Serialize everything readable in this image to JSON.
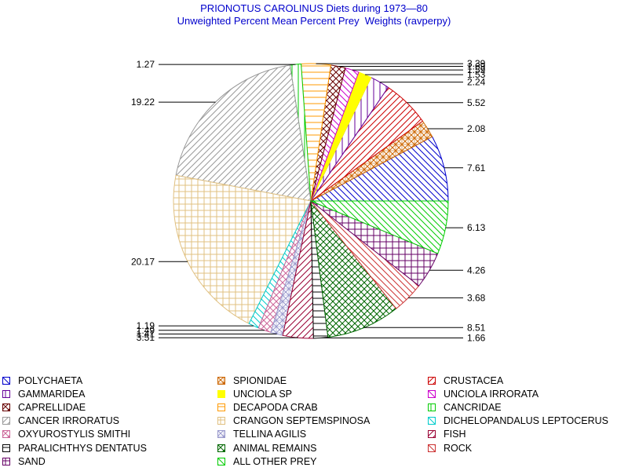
{
  "title": "PRIONOTUS CAROLINUS Diets during 1973—80",
  "subtitle": "Unweighted Percent Mean Percent Prey  Weights (ravperpy)",
  "chart_data": {
    "type": "pie",
    "title": "PRIONOTUS CAROLINUS Diets during 1973—80",
    "subtitle": "Unweighted Percent Mean Percent Prey  Weights (ravperpy)",
    "legend_position": "bottom",
    "start_angle_deg": 0,
    "direction": "counterclockwise",
    "slices": [
      {
        "name": "POLYCHAETA",
        "value": 7.61,
        "label": "7.61",
        "color": "#0000cc",
        "pattern": "diag-down"
      },
      {
        "name": "SPIONIDAE",
        "value": 2.08,
        "label": "2.08",
        "color": "#cc6600",
        "pattern": "cross-diag"
      },
      {
        "name": "CRUSTACEA",
        "value": 5.52,
        "label": "5.52",
        "color": "#cc0000",
        "pattern": "diag-up"
      },
      {
        "name": "GAMMARIDEA",
        "value": 2.24,
        "label": "2.24",
        "color": "#660099",
        "pattern": "vertical"
      },
      {
        "name": "UNCIOLA SP",
        "value": 1.53,
        "label": "1.53",
        "color": "#ffff00",
        "pattern": "solid"
      },
      {
        "name": "UNCIOLA IRRORATA",
        "value": 1.59,
        "label": "1.59",
        "color": "#cc00cc",
        "pattern": "diag-down"
      },
      {
        "name": "CAPRELLIDAE",
        "value": 1.69,
        "label": "1.69",
        "color": "#660000",
        "pattern": "crosshatch-diag"
      },
      {
        "name": "DECAPODA CRAB",
        "value": 3.39,
        "label": "3.39",
        "color": "#ff9900",
        "pattern": "horizontal"
      },
      {
        "name": "CANCRIDAE",
        "value": 1.27,
        "label": "1.27",
        "color": "#00cc00",
        "pattern": "vertical"
      },
      {
        "name": "CANCER IRRORATUS",
        "value": 19.22,
        "label": "19.22",
        "color": "#999999",
        "pattern": "diag-up"
      },
      {
        "name": "CRANGON SEPTEMSPINOSA",
        "value": 20.17,
        "label": "20.17",
        "color": "#e0c080",
        "pattern": "grid"
      },
      {
        "name": "DICHELOPANDALUS LEPTOCERUS",
        "value": 1.19,
        "label": "1.19",
        "color": "#00cccc",
        "pattern": "diag-down"
      },
      {
        "name": "OXYUROSTYLIS SMITHI",
        "value": 1.49,
        "label": "1.49",
        "color": "#cc6699",
        "pattern": "crosshatch-diag"
      },
      {
        "name": "TELLINA AGILIS",
        "value": 1.41,
        "label": "1.41",
        "color": "#9999cc",
        "pattern": "cross-diag"
      },
      {
        "name": "FISH",
        "value": 3.51,
        "label": "3.51",
        "color": "#990033",
        "pattern": "diag-up"
      },
      {
        "name": "PARALICHTHYS DENTATUS",
        "value": 1.66,
        "label": "1.66",
        "color": "#000000",
        "pattern": "horizontal"
      },
      {
        "name": "ANIMAL REMAINS",
        "value": 8.51,
        "label": "8.51",
        "color": "#006600",
        "pattern": "crosshatch-diag"
      },
      {
        "name": "ROCK",
        "value": 3.68,
        "label": "3.68",
        "color": "#cc3333",
        "pattern": "diag-down"
      },
      {
        "name": "SAND",
        "value": 4.26,
        "label": "4.26",
        "color": "#660066",
        "pattern": "grid"
      },
      {
        "name": "ALL OTHER PREY",
        "value": 6.13,
        "label": "6.13",
        "color": "#00cc00",
        "pattern": "diag-down"
      }
    ]
  }
}
